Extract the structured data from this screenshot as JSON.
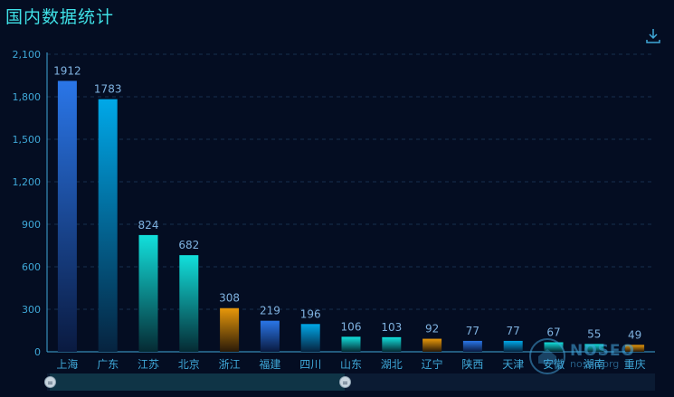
{
  "title": "国内数据统计",
  "watermark": {
    "text": "NOSEO",
    "url": "noseo.org"
  },
  "chart_data": {
    "type": "bar",
    "title": "国内数据统计",
    "categories": [
      "上海",
      "广东",
      "江苏",
      "北京",
      "浙江",
      "福建",
      "四川",
      "山东",
      "湖北",
      "辽宁",
      "陕西",
      "天津",
      "安徽",
      "湖南",
      "重庆"
    ],
    "values": [
      1912,
      1783,
      824,
      682,
      308,
      219,
      196,
      106,
      103,
      92,
      77,
      77,
      67,
      55,
      49
    ],
    "data_labels": [
      "1912",
      "1783",
      "824",
      "682",
      "308",
      "219",
      "196",
      "106",
      "103",
      "92",
      "77",
      "77",
      "67",
      "55",
      "49"
    ],
    "y_ticks": [
      "0",
      "300",
      "600",
      "900",
      "1,200",
      "1,500",
      "1,800",
      "2,100"
    ],
    "ylim": [
      0,
      2100
    ],
    "grid": "horizontal dashed",
    "bar_palette": [
      "blue",
      "cyan-blue",
      "teal",
      "teal",
      "orange"
    ],
    "colors": {
      "blue": [
        "#2a76e8",
        "#0a1a40"
      ],
      "cyan-blue": [
        "#00a8e8",
        "#06233f"
      ],
      "teal": [
        "#12e0dc",
        "#052a33"
      ],
      "orange": [
        "#e8980a",
        "#2a1a08"
      ],
      "axis": "#3fa8d8",
      "label": "#7fb2e0"
    },
    "datazoom": {
      "start": 0,
      "end": 0.49
    }
  }
}
